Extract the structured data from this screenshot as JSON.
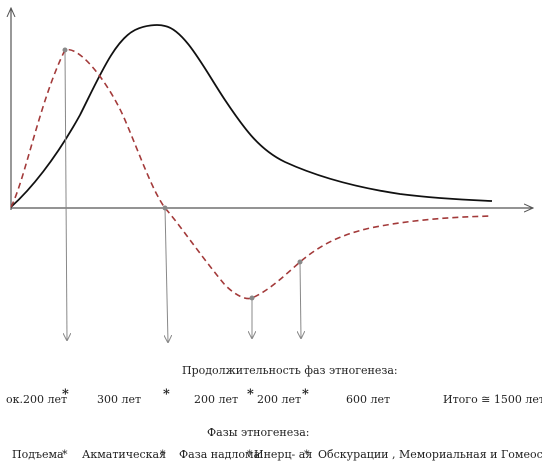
{
  "diagram": {
    "colors": {
      "axis": "#555555",
      "passionarity_curve": "#111111",
      "phase_curve": "#a33a3a",
      "marker_arrows": "#888888",
      "marker_dots": "#888888"
    }
  },
  "durations": {
    "title": "Продолжительность фаз этногенеза:",
    "items": [
      {
        "label": "ок.200 лет"
      },
      {
        "label": "300 лет"
      },
      {
        "label": "200  лет"
      },
      {
        "label": "200 лет"
      },
      {
        "label": "600 лет"
      }
    ],
    "separator": "*",
    "total": "Итого  ≅  1500 лет"
  },
  "phases": {
    "title": "Фазы этногенеза:",
    "separator": "*",
    "items": [
      {
        "label": "Подъема"
      },
      {
        "label": "Акматическая"
      },
      {
        "label": "Фаза надлома"
      },
      {
        "label": "Инерц- ая"
      },
      {
        "label": "Обскурации , Мемориальная и Гомеостаза"
      }
    ]
  }
}
